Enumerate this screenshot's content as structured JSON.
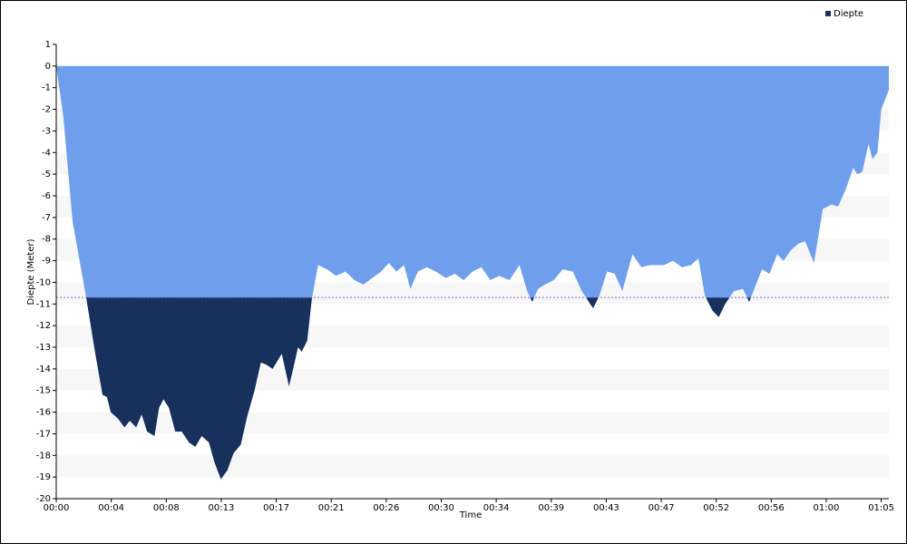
{
  "chart_data": {
    "type": "area",
    "x_label": "Time",
    "y_label": "Diepte (Meter)",
    "xlim": [
      0,
      65.6
    ],
    "ylim": [
      -20,
      1
    ],
    "xticks": [
      {
        "value": 0,
        "label": "00:00"
      },
      {
        "value": 4.333,
        "label": "00:04"
      },
      {
        "value": 8.667,
        "label": "00:08"
      },
      {
        "value": 13,
        "label": "00:13"
      },
      {
        "value": 17.333,
        "label": "00:17"
      },
      {
        "value": 21.667,
        "label": "00:21"
      },
      {
        "value": 26,
        "label": "00:26"
      },
      {
        "value": 30.333,
        "label": "00:30"
      },
      {
        "value": 34.667,
        "label": "00:34"
      },
      {
        "value": 39,
        "label": "00:39"
      },
      {
        "value": 43.333,
        "label": "00:43"
      },
      {
        "value": 47.667,
        "label": "00:47"
      },
      {
        "value": 52,
        "label": "00:52"
      },
      {
        "value": 56.333,
        "label": "00:56"
      },
      {
        "value": 60.667,
        "label": "01:00"
      },
      {
        "value": 65,
        "label": "01:05"
      }
    ],
    "yticks": [
      1,
      0,
      -1,
      -2,
      -3,
      -4,
      -5,
      -6,
      -7,
      -8,
      -9,
      -10,
      -11,
      -12,
      -13,
      -14,
      -15,
      -16,
      -17,
      -18,
      -19,
      -20
    ],
    "grid": "bands",
    "threshold": -10.7,
    "legend": "top-right",
    "series": [
      {
        "name": "Diepte",
        "color": "#6f9fec",
        "below_color": "#17305c",
        "x": [
          0,
          0.57,
          1.29,
          2.36,
          3.08,
          3.65,
          4.0,
          4.3,
          4.87,
          5.37,
          5.8,
          6.3,
          6.73,
          7.16,
          7.74,
          8.1,
          8.45,
          8.88,
          9.38,
          9.89,
          10.46,
          10.96,
          11.46,
          12.03,
          12.46,
          12.97,
          13.47,
          13.97,
          14.54,
          15.04,
          15.62,
          16.12,
          16.55,
          17.05,
          17.77,
          18.34,
          18.7,
          19.05,
          19.34,
          19.77,
          20.13,
          20.63,
          21.35,
          22.06,
          22.78,
          23.5,
          24.2,
          24.9,
          25.6,
          26.2,
          26.8,
          27.4,
          27.9,
          28.5,
          29.2,
          29.9,
          30.7,
          31.4,
          32.1,
          32.8,
          33.5,
          34.2,
          34.9,
          35.7,
          36.5,
          37.1,
          37.5,
          37.96,
          38.5,
          39.2,
          39.9,
          40.7,
          41.4,
          42.3,
          42.8,
          43.4,
          44.0,
          44.6,
          45.4,
          46.1,
          46.8,
          47.9,
          48.6,
          49.3,
          50.0,
          50.6,
          51.1,
          51.7,
          52.2,
          52.7,
          53.4,
          54.1,
          54.6,
          55.0,
          55.6,
          56.2,
          56.8,
          57.3,
          57.9,
          58.5,
          59.0,
          59.7,
          60.4,
          61.1,
          61.6,
          62.2,
          62.8,
          63.1,
          63.5,
          64.0,
          64.3,
          64.7,
          65.0,
          65.6
        ],
        "values": [
          0,
          -2.4,
          -7.2,
          -10.7,
          -13.3,
          -15.2,
          -15.3,
          -16.0,
          -16.3,
          -16.7,
          -16.4,
          -16.7,
          -16.1,
          -16.9,
          -17.1,
          -15.8,
          -15.4,
          -15.8,
          -16.9,
          -16.9,
          -17.4,
          -17.6,
          -17.1,
          -17.4,
          -18.3,
          -19.1,
          -18.7,
          -17.9,
          -17.5,
          -16.2,
          -15.0,
          -13.7,
          -13.8,
          -14.0,
          -13.3,
          -14.8,
          -13.9,
          -13.0,
          -13.2,
          -12.7,
          -10.8,
          -9.2,
          -9.4,
          -9.7,
          -9.5,
          -9.9,
          -10.1,
          -9.8,
          -9.5,
          -9.1,
          -9.5,
          -9.2,
          -10.3,
          -9.5,
          -9.3,
          -9.5,
          -9.8,
          -9.6,
          -9.9,
          -9.5,
          -9.3,
          -9.9,
          -9.7,
          -9.9,
          -9.2,
          -10.4,
          -10.9,
          -10.3,
          -10.1,
          -9.9,
          -9.4,
          -9.5,
          -10.4,
          -11.2,
          -10.6,
          -9.5,
          -9.6,
          -10.4,
          -8.7,
          -9.3,
          -9.2,
          -9.2,
          -9.0,
          -9.3,
          -9.2,
          -8.9,
          -10.6,
          -11.3,
          -11.6,
          -11.0,
          -10.4,
          -10.3,
          -10.9,
          -10.3,
          -9.4,
          -9.6,
          -8.7,
          -9.0,
          -8.5,
          -8.2,
          -8.1,
          -9.1,
          -6.6,
          -6.4,
          -6.5,
          -5.7,
          -4.7,
          -5.0,
          -4.9,
          -3.6,
          -4.3,
          -4.0,
          -2.0,
          -1.1
        ]
      }
    ]
  }
}
